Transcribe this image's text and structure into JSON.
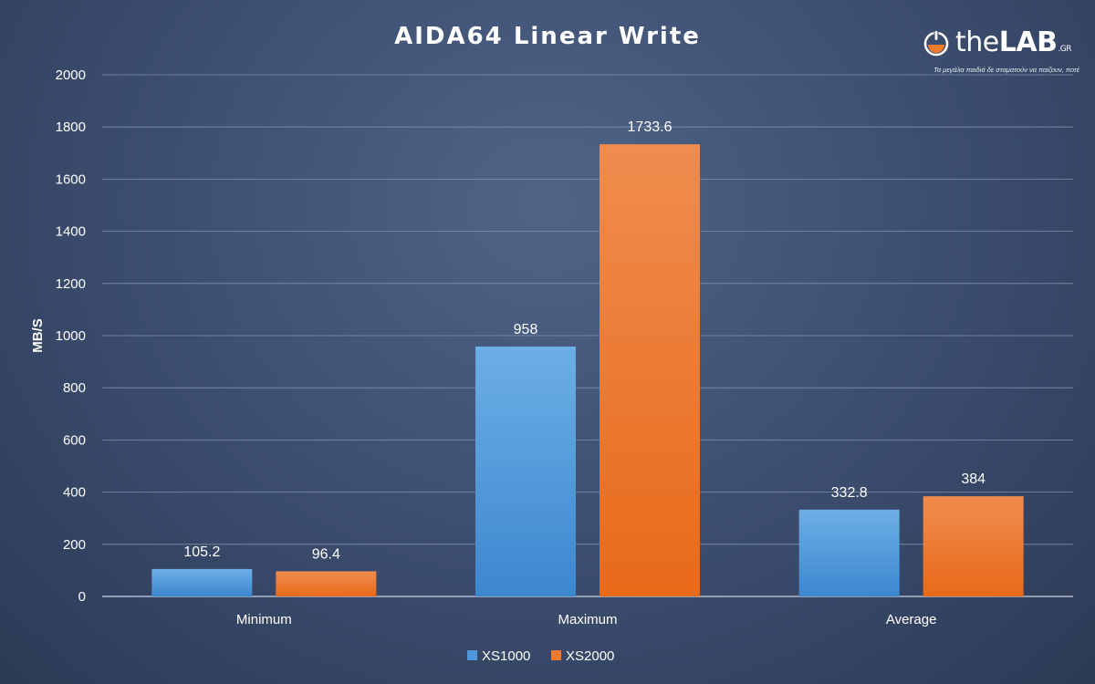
{
  "logo": {
    "brand_the": "the",
    "brand_lab": "LAB",
    "brand_gr": ".GR",
    "tagline": "Τα μεγάλα παιδιά δε σταματούν να παίζουν, ποτέ"
  },
  "chart_data": {
    "type": "bar",
    "title": "AIDA64 Linear Write",
    "xlabel": "",
    "ylabel": "MB/S",
    "categories": [
      "Minimum",
      "Maximum",
      "Average"
    ],
    "series": [
      {
        "name": "XS1000",
        "values": [
          105.2,
          958,
          332.8
        ],
        "labels": [
          "105.2",
          "958",
          "332.8"
        ],
        "color": "#4f97da"
      },
      {
        "name": "XS2000",
        "values": [
          96.4,
          1733.6,
          384
        ],
        "labels": [
          "96.4",
          "1733.6",
          "384"
        ],
        "color": "#f07b2d"
      }
    ],
    "ylim": [
      0,
      2000
    ],
    "yticks": [
      0,
      200,
      400,
      600,
      800,
      1000,
      1200,
      1400,
      1600,
      1800,
      2000
    ],
    "grid": true,
    "legend_position": "bottom",
    "colors": {
      "text": "#ffffff",
      "grid": "#7f8fae",
      "axis": "#c9d2e2"
    }
  }
}
